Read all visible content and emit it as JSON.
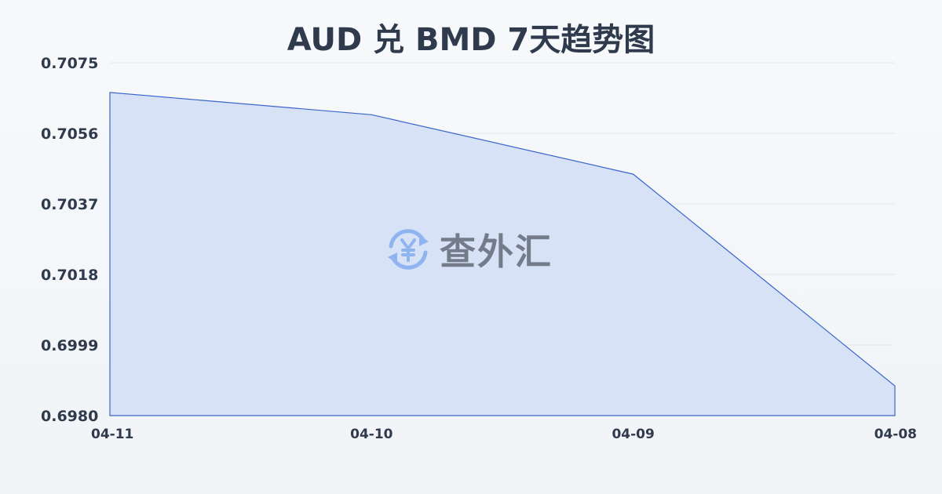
{
  "chart_data": {
    "type": "area",
    "title": "AUD 兑 BMD 7天趋势图",
    "categories": [
      "04-11",
      "04-10",
      "04-09",
      "04-08"
    ],
    "series": [
      {
        "values": [
          0.7067,
          0.7061,
          0.7045,
          0.6988
        ]
      }
    ],
    "yticks": [
      "0.7075",
      "0.7056",
      "0.7037",
      "0.7018",
      "0.6999",
      "0.6980"
    ],
    "ylim": [
      0.698,
      0.7075
    ],
    "xlabel": "",
    "ylabel": "",
    "grid": true,
    "colors": {
      "line": "#3a66cc",
      "fill": "#d6e0f5",
      "grid": "#e3e7ee",
      "text": "#2f3a4c"
    }
  },
  "watermark": {
    "text": "查外汇",
    "icon": "yen-exchange-icon",
    "icon_color": "#8fb4f0"
  }
}
